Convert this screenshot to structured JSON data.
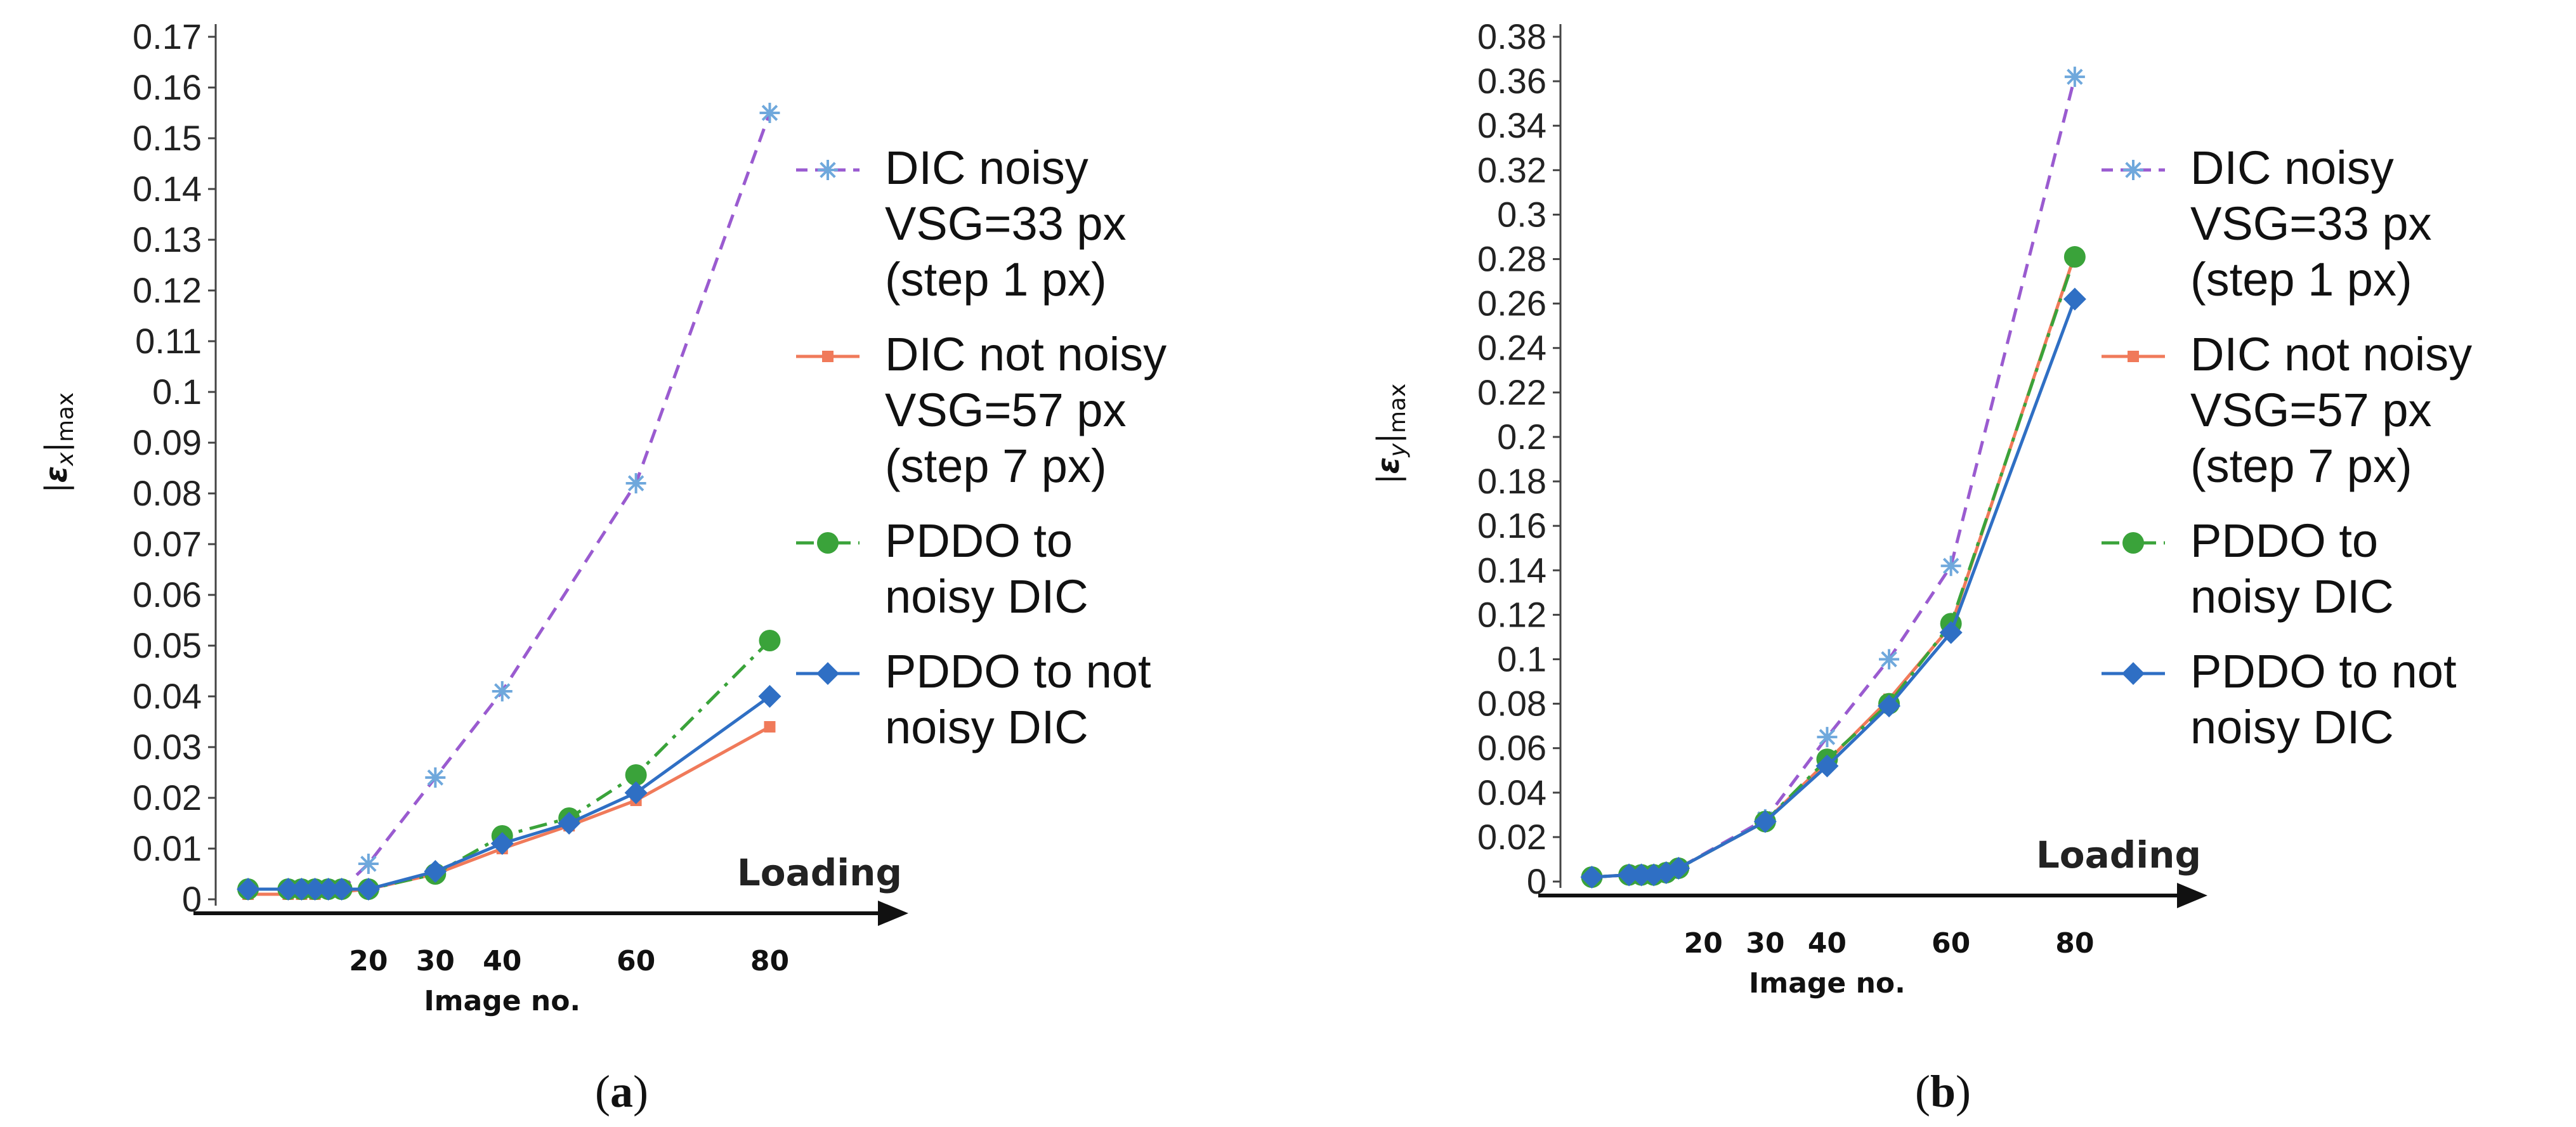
{
  "chart_data": [
    {
      "id": "a",
      "type": "line",
      "caption": "a",
      "ylabel_symbol": "ε",
      "ylabel_sub": "x",
      "ylabel_suffix": "max",
      "xlabel": "Image no.",
      "axis_arrow_label": "Loading",
      "ylim": [
        0,
        0.17
      ],
      "yticks": [
        "0",
        "0.01",
        "0.02",
        "0.03",
        "0.04",
        "0.05",
        "0.06",
        "0.07",
        "0.08",
        "0.09",
        "0.1",
        "0.11",
        "0.12",
        "0.13",
        "0.14",
        "0.15",
        "0.16",
        "0.17"
      ],
      "xlim": [
        0,
        92
      ],
      "xticks": [
        "20",
        "30",
        "40",
        "60",
        "80"
      ],
      "series": [
        {
          "name": "DIC noisy VSG=33 px (step 1 px)",
          "style": "dashed",
          "marker": "asterisk",
          "color": "#9a5bd0",
          "x": [
            2,
            8,
            10,
            12,
            14,
            16,
            20,
            30,
            40,
            60,
            80
          ],
          "y": [
            0.002,
            0.002,
            0.002,
            0.002,
            0.002,
            0.002,
            0.007,
            0.024,
            0.041,
            0.082,
            0.155
          ]
        },
        {
          "name": "DIC not noisy VSG=57 px (step 7 px)",
          "style": "solid",
          "marker": "square",
          "color": "#f07a5a",
          "x": [
            2,
            8,
            10,
            12,
            14,
            16,
            20,
            30,
            40,
            50,
            60,
            80
          ],
          "y": [
            0.001,
            0.001,
            0.001,
            0.001,
            0.0015,
            0.0015,
            0.002,
            0.005,
            0.01,
            0.0145,
            0.0195,
            0.034
          ]
        },
        {
          "name": "PDDO to noisy DIC",
          "style": "dashdot",
          "marker": "circle",
          "color": "#3aa33a",
          "x": [
            2,
            8,
            10,
            12,
            14,
            16,
            20,
            30,
            40,
            50,
            60,
            80
          ],
          "y": [
            0.002,
            0.002,
            0.002,
            0.002,
            0.002,
            0.002,
            0.002,
            0.005,
            0.0125,
            0.016,
            0.0245,
            0.051
          ]
        },
        {
          "name": "PDDO to not noisy DIC",
          "style": "solid",
          "marker": "diamond",
          "color": "#2f6fc4",
          "x": [
            2,
            8,
            10,
            12,
            14,
            16,
            20,
            30,
            40,
            50,
            60,
            80
          ],
          "y": [
            0.002,
            0.002,
            0.002,
            0.002,
            0.002,
            0.002,
            0.002,
            0.0055,
            0.011,
            0.015,
            0.021,
            0.04
          ]
        }
      ]
    },
    {
      "id": "b",
      "type": "line",
      "caption": "b",
      "ylabel_symbol": "ε",
      "ylabel_sub": "y",
      "ylabel_suffix": "max",
      "xlabel": "Image no.",
      "axis_arrow_label": "Loading",
      "ylim": [
        0,
        0.38
      ],
      "yticks": [
        "0",
        "0.02",
        "0.04",
        "0.06",
        "0.08",
        "0.1",
        "0.12",
        "0.14",
        "0.16",
        "0.18",
        "0.2",
        "0.22",
        "0.24",
        "0.26",
        "0.28",
        "0.3",
        "0.32",
        "0.34",
        "0.36",
        "0.38"
      ],
      "xlim": [
        0,
        92
      ],
      "xticks": [
        "20",
        "30",
        "40",
        "60",
        "80"
      ],
      "series": [
        {
          "name": "DIC noisy VSG=33 px (step 1 px)",
          "style": "dashed",
          "marker": "asterisk",
          "color": "#9a5bd0",
          "x": [
            2,
            8,
            10,
            12,
            14,
            16,
            30,
            40,
            50,
            60,
            80
          ],
          "y": [
            0.002,
            0.003,
            0.003,
            0.003,
            0.004,
            0.006,
            0.028,
            0.065,
            0.1,
            0.142,
            0.362
          ]
        },
        {
          "name": "DIC not noisy VSG=57 px (step 7 px)",
          "style": "solid",
          "marker": "square",
          "color": "#f07a5a",
          "x": [
            2,
            8,
            10,
            12,
            14,
            16,
            30,
            40,
            50,
            60,
            80
          ],
          "y": [
            0.002,
            0.003,
            0.003,
            0.003,
            0.004,
            0.006,
            0.027,
            0.054,
            0.082,
            0.115,
            0.282
          ]
        },
        {
          "name": "PDDO to noisy DIC",
          "style": "dashdot",
          "marker": "circle",
          "color": "#3aa33a",
          "x": [
            2,
            8,
            10,
            12,
            14,
            16,
            30,
            40,
            50,
            60,
            80
          ],
          "y": [
            0.002,
            0.003,
            0.003,
            0.003,
            0.004,
            0.006,
            0.027,
            0.055,
            0.08,
            0.116,
            0.281
          ]
        },
        {
          "name": "PDDO to not noisy DIC",
          "style": "solid",
          "marker": "diamond",
          "color": "#2f6fc4",
          "x": [
            2,
            8,
            10,
            12,
            14,
            16,
            30,
            40,
            50,
            60,
            80
          ],
          "y": [
            0.002,
            0.003,
            0.003,
            0.003,
            0.004,
            0.006,
            0.027,
            0.052,
            0.079,
            0.112,
            0.262
          ]
        }
      ]
    }
  ],
  "legend": [
    {
      "lines": [
        "DIC noisy",
        "VSG=33 px",
        "(step 1 px)"
      ]
    },
    {
      "lines": [
        "DIC not noisy",
        "VSG=57 px",
        "(step 7 px)"
      ]
    },
    {
      "lines": [
        "PDDO to",
        "noisy DIC"
      ]
    },
    {
      "lines": [
        "PDDO to not",
        "noisy DIC"
      ]
    }
  ]
}
